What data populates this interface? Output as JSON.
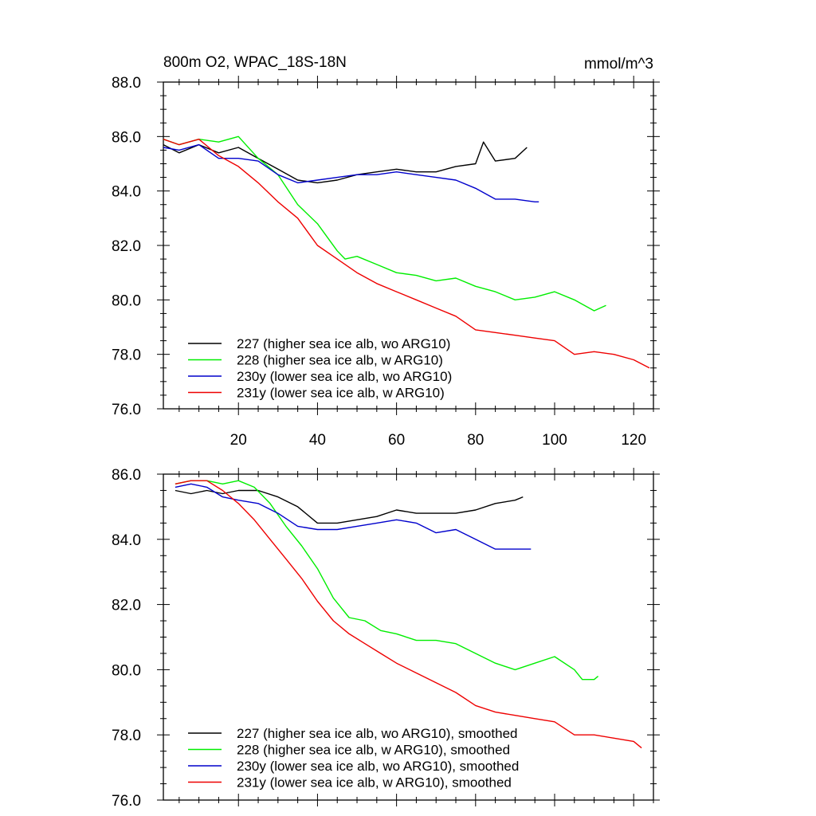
{
  "chart_data": [
    {
      "type": "line",
      "title": "800m O2, WPAC_18S-18N",
      "units": "mmol/m^3",
      "xlim": [
        1,
        125
      ],
      "ylim": [
        76,
        88
      ],
      "yticks": [
        "76.0",
        "78.0",
        "80.0",
        "82.0",
        "84.0",
        "86.0",
        "88.0"
      ],
      "ytick_values": [
        76,
        78,
        80,
        82,
        84,
        86,
        88
      ],
      "xticks": [
        "20",
        "40",
        "60",
        "80",
        "100",
        "120"
      ],
      "xtick_values": [
        20,
        40,
        60,
        80,
        100,
        120
      ],
      "series": [
        {
          "name": "227 (higher sea ice alb, wo ARG10)",
          "color": "#000000",
          "x": [
            1,
            5,
            10,
            15,
            20,
            25,
            30,
            35,
            40,
            45,
            50,
            55,
            60,
            65,
            70,
            75,
            80,
            82,
            85,
            90,
            93
          ],
          "y": [
            85.7,
            85.4,
            85.7,
            85.4,
            85.6,
            85.2,
            84.8,
            84.4,
            84.3,
            84.4,
            84.6,
            84.7,
            84.8,
            84.7,
            84.7,
            84.9,
            85.0,
            85.8,
            85.1,
            85.2,
            85.6
          ]
        },
        {
          "name": "228 (higher sea ice alb, w ARG10)",
          "color": "#00ee00",
          "x": [
            1,
            5,
            10,
            15,
            20,
            25,
            30,
            35,
            40,
            45,
            47,
            50,
            55,
            60,
            65,
            70,
            75,
            80,
            85,
            90,
            95,
            100,
            105,
            110,
            113
          ],
          "y": [
            85.9,
            85.7,
            85.9,
            85.8,
            86.0,
            85.2,
            84.6,
            83.5,
            82.8,
            81.8,
            81.5,
            81.6,
            81.3,
            81.0,
            80.9,
            80.7,
            80.8,
            80.5,
            80.3,
            80.0,
            80.1,
            80.3,
            80.0,
            79.6,
            79.8
          ]
        },
        {
          "name": "230y (lower sea ice alb, wo ARG10)",
          "color": "#0000cc",
          "x": [
            1,
            5,
            10,
            15,
            20,
            25,
            30,
            35,
            40,
            45,
            50,
            55,
            60,
            65,
            70,
            75,
            80,
            85,
            90,
            95,
            96
          ],
          "y": [
            85.6,
            85.5,
            85.7,
            85.2,
            85.2,
            85.1,
            84.6,
            84.3,
            84.4,
            84.5,
            84.6,
            84.6,
            84.7,
            84.6,
            84.5,
            84.4,
            84.1,
            83.7,
            83.7,
            83.6,
            83.6
          ]
        },
        {
          "name": "231y (lower sea ice alb, w ARG10)",
          "color": "#ee0000",
          "x": [
            1,
            5,
            10,
            15,
            20,
            25,
            30,
            35,
            40,
            45,
            50,
            55,
            60,
            65,
            70,
            75,
            80,
            85,
            90,
            95,
            100,
            105,
            110,
            115,
            120,
            124
          ],
          "y": [
            85.9,
            85.7,
            85.9,
            85.3,
            84.9,
            84.3,
            83.6,
            83.0,
            82.0,
            81.5,
            81.0,
            80.6,
            80.3,
            80.0,
            79.7,
            79.4,
            78.9,
            78.8,
            78.7,
            78.6,
            78.5,
            78.0,
            78.1,
            78.0,
            77.8,
            77.5
          ]
        }
      ]
    },
    {
      "type": "line",
      "xlim": [
        1,
        125
      ],
      "ylim": [
        76,
        86
      ],
      "yticks": [
        "76.0",
        "78.0",
        "80.0",
        "82.0",
        "84.0",
        "86.0"
      ],
      "ytick_values": [
        76,
        78,
        80,
        82,
        84,
        86
      ],
      "xtick_values": [
        20,
        40,
        60,
        80,
        100,
        120
      ],
      "series": [
        {
          "name": "227 (higher sea ice alb, wo ARG10), smoothed",
          "color": "#000000",
          "x": [
            4,
            8,
            12,
            16,
            20,
            25,
            30,
            35,
            40,
            45,
            50,
            55,
            60,
            65,
            70,
            75,
            80,
            85,
            90,
            92
          ],
          "y": [
            85.5,
            85.4,
            85.5,
            85.4,
            85.5,
            85.5,
            85.3,
            85.0,
            84.5,
            84.5,
            84.6,
            84.7,
            84.9,
            84.8,
            84.8,
            84.8,
            84.9,
            85.1,
            85.2,
            85.3
          ]
        },
        {
          "name": "228 (higher sea ice alb, w ARG10), smoothed",
          "color": "#00ee00",
          "x": [
            4,
            8,
            12,
            16,
            20,
            24,
            28,
            32,
            36,
            40,
            44,
            48,
            52,
            56,
            60,
            65,
            70,
            75,
            80,
            85,
            90,
            95,
            100,
            105,
            107,
            110,
            111
          ],
          "y": [
            85.7,
            85.8,
            85.8,
            85.7,
            85.8,
            85.6,
            85.1,
            84.4,
            83.8,
            83.1,
            82.2,
            81.6,
            81.5,
            81.2,
            81.1,
            80.9,
            80.9,
            80.8,
            80.5,
            80.2,
            80.0,
            80.2,
            80.4,
            80.0,
            79.7,
            79.7,
            79.8
          ]
        },
        {
          "name": "230y (lower sea ice alb, wo ARG10), smoothed",
          "color": "#0000cc",
          "x": [
            4,
            8,
            12,
            16,
            20,
            25,
            30,
            35,
            40,
            45,
            50,
            55,
            60,
            65,
            70,
            75,
            80,
            85,
            90,
            94
          ],
          "y": [
            85.6,
            85.7,
            85.6,
            85.3,
            85.2,
            85.1,
            84.8,
            84.4,
            84.3,
            84.3,
            84.4,
            84.5,
            84.6,
            84.5,
            84.2,
            84.3,
            84.0,
            83.7,
            83.7,
            83.7
          ]
        },
        {
          "name": "231y (lower sea ice alb, w ARG10), smoothed",
          "color": "#ee0000",
          "x": [
            4,
            8,
            12,
            16,
            20,
            24,
            28,
            32,
            36,
            40,
            44,
            48,
            52,
            56,
            60,
            65,
            70,
            75,
            80,
            85,
            90,
            95,
            100,
            105,
            110,
            115,
            120,
            122
          ],
          "y": [
            85.7,
            85.8,
            85.8,
            85.5,
            85.1,
            84.6,
            84.0,
            83.4,
            82.8,
            82.1,
            81.5,
            81.1,
            80.8,
            80.5,
            80.2,
            79.9,
            79.6,
            79.3,
            78.9,
            78.7,
            78.6,
            78.5,
            78.4,
            78.0,
            78.0,
            77.9,
            77.8,
            77.6
          ]
        }
      ]
    }
  ]
}
